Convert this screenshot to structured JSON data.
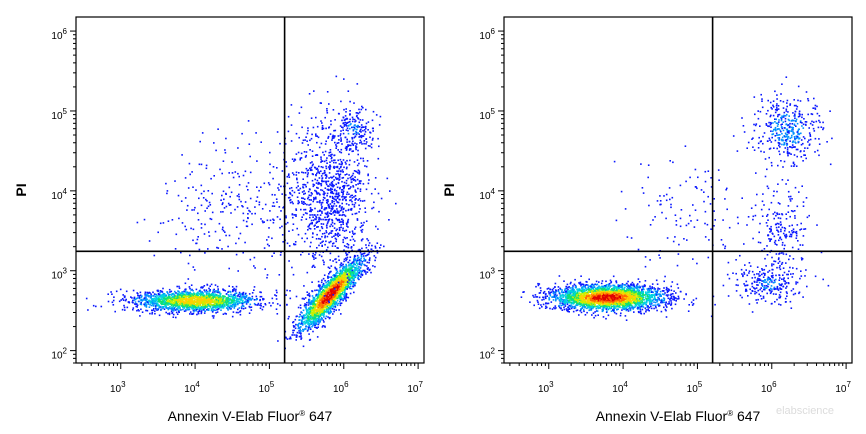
{
  "chart_data": [
    {
      "type": "scatter",
      "subtype": "flow-cytometry-density-dot-plot",
      "title": "",
      "xlabel": "Annexin V-Elab Fluor",
      "xlabel_sup": "®",
      "xlabel_suffix": " 647",
      "ylabel": "PI",
      "xscale": "log",
      "yscale": "log",
      "xlim": [
        250,
        12000000
      ],
      "ylim": [
        70,
        1500000
      ],
      "x_ticks": [
        {
          "base": "10",
          "exp": "3",
          "value": 1000
        },
        {
          "base": "10",
          "exp": "4",
          "value": 10000
        },
        {
          "base": "10",
          "exp": "5",
          "value": 100000
        },
        {
          "base": "10",
          "exp": "6",
          "value": 1000000
        },
        {
          "base": "10",
          "exp": "7",
          "value": 10000000
        }
      ],
      "y_ticks": [
        {
          "base": "10",
          "exp": "2",
          "value": 100
        },
        {
          "base": "10",
          "exp": "3",
          "value": 1000
        },
        {
          "base": "10",
          "exp": "4",
          "value": 10000
        },
        {
          "base": "10",
          "exp": "5",
          "value": 100000
        },
        {
          "base": "10",
          "exp": "6",
          "value": 1000000
        }
      ],
      "quadrant_gate": {
        "x": 160000,
        "y": 1750
      },
      "populations": [
        {
          "center": [
            10000,
            430
          ],
          "spread_decades": [
            0.42,
            0.07
          ],
          "events": 1700,
          "peak": 0.75
        },
        {
          "center": [
            650000,
            520
          ],
          "spread_decades": [
            0.22,
            0.11
          ],
          "events": 1900,
          "peak": 1.0,
          "tilt": 0.9
        },
        {
          "center": [
            650000,
            9000
          ],
          "spread_decades": [
            0.28,
            0.45
          ],
          "events": 1000,
          "peak": 0.12
        },
        {
          "center": [
            1300000,
            60000
          ],
          "spread_decades": [
            0.14,
            0.15
          ],
          "events": 180,
          "peak": 0.15
        },
        {
          "center": [
            30000,
            6000
          ],
          "spread_decades": [
            0.5,
            0.4
          ],
          "events": 260,
          "peak": 0.05
        }
      ]
    },
    {
      "type": "scatter",
      "subtype": "flow-cytometry-density-dot-plot",
      "title": "",
      "xlabel": "Annexin V-Elab Fluor",
      "xlabel_sup": "®",
      "xlabel_suffix": " 647",
      "ylabel": "PI",
      "xscale": "log",
      "yscale": "log",
      "xlim": [
        250,
        12000000
      ],
      "ylim": [
        70,
        1500000
      ],
      "x_ticks": [
        {
          "base": "10",
          "exp": "3",
          "value": 1000
        },
        {
          "base": "10",
          "exp": "4",
          "value": 10000
        },
        {
          "base": "10",
          "exp": "5",
          "value": 100000
        },
        {
          "base": "10",
          "exp": "6",
          "value": 1000000
        },
        {
          "base": "10",
          "exp": "7",
          "value": 10000000
        }
      ],
      "y_ticks": [
        {
          "base": "10",
          "exp": "2",
          "value": 100
        },
        {
          "base": "10",
          "exp": "3",
          "value": 1000
        },
        {
          "base": "10",
          "exp": "4",
          "value": 10000
        },
        {
          "base": "10",
          "exp": "5",
          "value": 100000
        },
        {
          "base": "10",
          "exp": "6",
          "value": 1000000
        }
      ],
      "quadrant_gate": {
        "x": 160000,
        "y": 1750
      },
      "populations": [
        {
          "center": [
            6000,
            470
          ],
          "spread_decades": [
            0.38,
            0.08
          ],
          "events": 2600,
          "peak": 1.0
        },
        {
          "center": [
            900000,
            700
          ],
          "spread_decades": [
            0.22,
            0.12
          ],
          "events": 260,
          "peak": 0.15
        },
        {
          "center": [
            1300000,
            3500
          ],
          "spread_decades": [
            0.18,
            0.25
          ],
          "events": 180,
          "peak": 0.1
        },
        {
          "center": [
            1600000,
            60000
          ],
          "spread_decades": [
            0.22,
            0.2
          ],
          "events": 400,
          "peak": 0.2
        },
        {
          "center": [
            80000,
            5000
          ],
          "spread_decades": [
            0.45,
            0.4
          ],
          "events": 130,
          "peak": 0.04
        }
      ]
    }
  ],
  "watermark": "elabscience"
}
